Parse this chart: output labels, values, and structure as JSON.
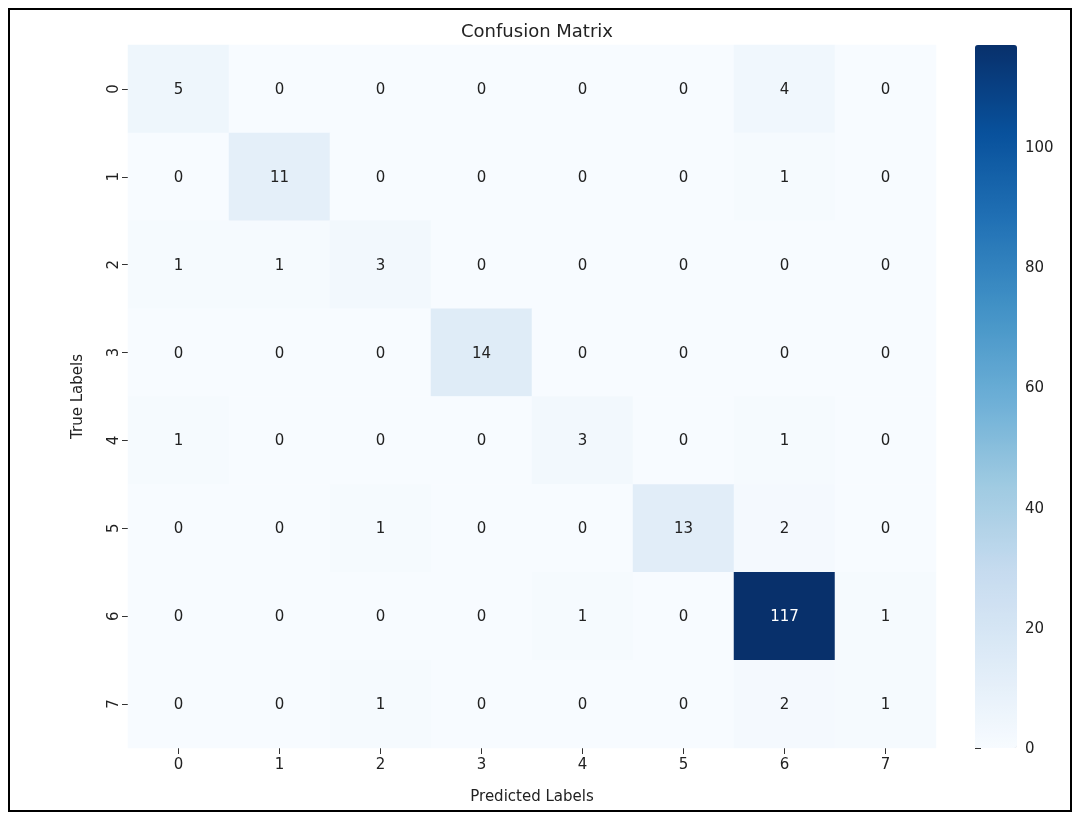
{
  "chart_data": {
    "type": "heatmap",
    "title": "Confusion Matrix",
    "xlabel": "Predicted Labels",
    "ylabel": "True Labels",
    "categories": [
      "0",
      "1",
      "2",
      "3",
      "4",
      "5",
      "6",
      "7"
    ],
    "y_categories": [
      "0",
      "1",
      "2",
      "3",
      "4",
      "5",
      "6",
      "7"
    ],
    "cells": [
      [
        5,
        0,
        0,
        0,
        0,
        0,
        4,
        0
      ],
      [
        0,
        11,
        0,
        0,
        0,
        0,
        1,
        0
      ],
      [
        1,
        1,
        3,
        0,
        0,
        0,
        0,
        0
      ],
      [
        0,
        0,
        0,
        14,
        0,
        0,
        0,
        0
      ],
      [
        1,
        0,
        0,
        0,
        3,
        0,
        1,
        0
      ],
      [
        0,
        0,
        1,
        0,
        0,
        13,
        2,
        0
      ],
      [
        0,
        0,
        0,
        0,
        1,
        0,
        117,
        1
      ],
      [
        0,
        0,
        1,
        0,
        0,
        0,
        2,
        1
      ]
    ],
    "clim": [
      0,
      117
    ],
    "cticks": [
      0,
      20,
      40,
      60,
      80,
      100
    ],
    "data_labels": true
  }
}
